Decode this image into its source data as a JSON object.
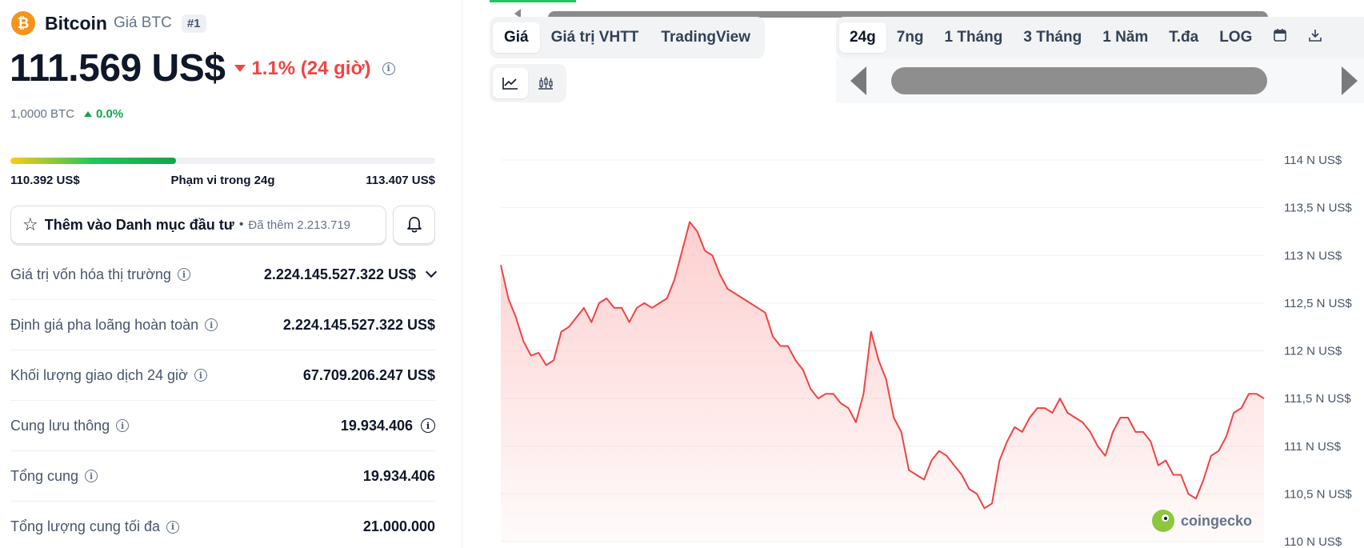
{
  "coin": {
    "name": "Bitcoin",
    "symbol_label": "Giá BTC",
    "rank": "#1",
    "logo_glyph": "₿",
    "price": "111.569 US$",
    "change_24h": "1.1% (24 giờ)",
    "btc_amount": "1,0000 BTC",
    "btc_change": "0.0%"
  },
  "range": {
    "low": "110.392 US$",
    "label": "Phạm vi trong 24g",
    "high": "113.407 US$",
    "fill_fraction": 0.39
  },
  "watchlist": {
    "label": "Thêm vào Danh mục đầu tư",
    "separator": "•",
    "added": "Đã thêm 2.213.719"
  },
  "stats": [
    {
      "label": "Giá trị vốn hóa thị trường",
      "value": "2.224.145.527.322 US$",
      "extra": "chevron-down-icon"
    },
    {
      "label": "Định giá pha loãng hoàn toàn",
      "value": "2.224.145.527.322 US$",
      "extra": ""
    },
    {
      "label": "Khối lượng giao dịch 24 giờ",
      "value": "67.709.206.247 US$",
      "extra": ""
    },
    {
      "label": "Cung lưu thông",
      "value": "19.934.406",
      "extra": "info-icon"
    },
    {
      "label": "Tổng cung",
      "value": "19.934.406",
      "extra": ""
    },
    {
      "label": "Tổng lượng cung tối đa",
      "value": "21.000.000",
      "extra": ""
    }
  ],
  "chart_tabs": {
    "type_tabs": [
      "Giá",
      "Giá trị VHTT",
      "TradingView"
    ],
    "active_type": "Giá",
    "time_tabs": [
      "24g",
      "7ng",
      "1 Tháng",
      "3 Tháng",
      "1 Năm",
      "T.đa",
      "LOG"
    ],
    "active_time": "24g",
    "icons": [
      "line-chart-icon",
      "candlestick-icon",
      "calendar-icon",
      "download-icon"
    ]
  },
  "colors": {
    "line": "#ef4444",
    "fill": "#fecaca",
    "brand": "#f7931a",
    "up": "#16a34a",
    "down": "#ef4444"
  },
  "watermark": "coingecko",
  "chart_data": {
    "type": "area",
    "y_ticks": [
      "114 N US$",
      "113,5 N US$",
      "113 N US$",
      "112,5 N US$",
      "112 N US$",
      "111,5 N US$",
      "111 N US$",
      "110,5 N US$",
      "110 N US$"
    ],
    "ylim": [
      110000,
      114000
    ],
    "grid": true,
    "series": [
      {
        "values": [
          112900,
          112550,
          112350,
          112100,
          111950,
          111980,
          111850,
          111900,
          112200,
          112250,
          112350,
          112450,
          112300,
          112500,
          112550,
          112450,
          112450,
          112300,
          112450,
          112500,
          112450,
          112500,
          112550,
          112750,
          113050,
          113350,
          113250,
          113050,
          113000,
          112800,
          112650,
          112600,
          112550,
          112500,
          112450,
          112400,
          112150,
          112050,
          112050,
          111900,
          111800,
          111600,
          111500,
          111550,
          111550,
          111450,
          111400,
          111250,
          111550,
          112200,
          111900,
          111700,
          111300,
          111150,
          110750,
          110700,
          110650,
          110850,
          110950,
          110900,
          110800,
          110700,
          110550,
          110500,
          110350,
          110400,
          110850,
          111050,
          111200,
          111150,
          111300,
          111400,
          111400,
          111350,
          111500,
          111350,
          111300,
          111250,
          111150,
          111000,
          110900,
          111150,
          111300,
          111300,
          111150,
          111150,
          111050,
          110800,
          110850,
          110700,
          110700,
          110500,
          110450,
          110650,
          110900,
          110950,
          111100,
          111350,
          111400,
          111550,
          111550,
          111500
        ]
      }
    ]
  }
}
